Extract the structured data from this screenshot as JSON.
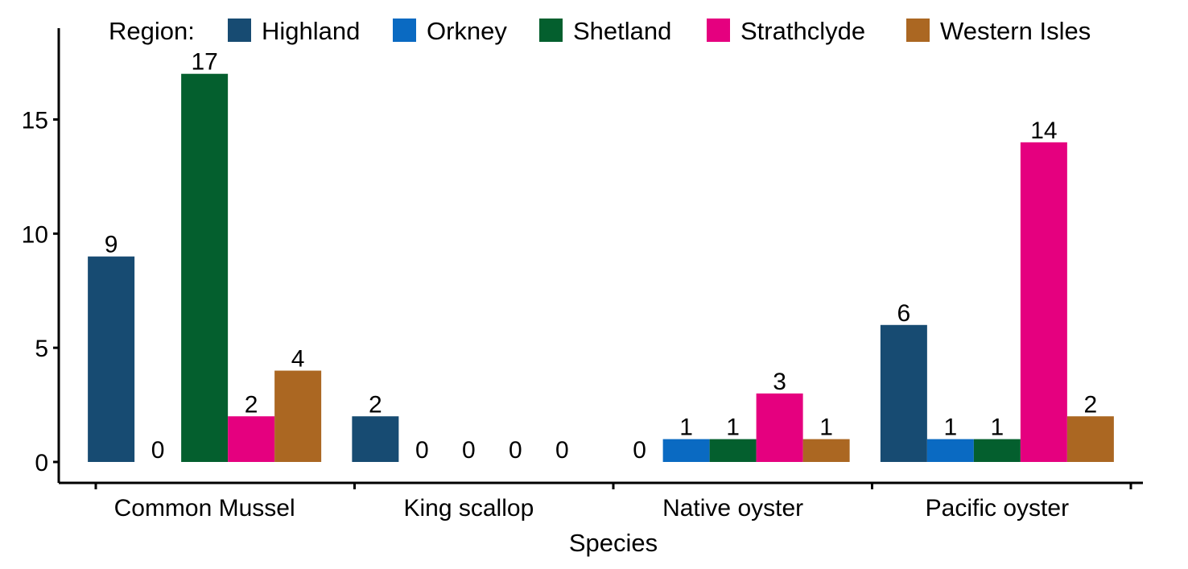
{
  "chart_data": {
    "type": "bar",
    "xlabel": "Species",
    "ylabel": "",
    "categories": [
      "Common Mussel",
      "King scallop",
      "Native oyster",
      "Pacific oyster"
    ],
    "series": [
      {
        "name": "Highland",
        "color": "#174B72",
        "values": [
          9,
          2,
          0,
          6
        ]
      },
      {
        "name": "Orkney",
        "color": "#0A6AC2",
        "values": [
          0,
          0,
          1,
          1
        ]
      },
      {
        "name": "Shetland",
        "color": "#045F2E",
        "values": [
          17,
          0,
          1,
          1
        ]
      },
      {
        "name": "Strathclyde",
        "color": "#E5007F",
        "values": [
          2,
          0,
          3,
          14
        ]
      },
      {
        "name": "Western Isles",
        "color": "#AB6722",
        "values": [
          4,
          0,
          1,
          2
        ]
      }
    ],
    "ylim": [
      -0.8,
      19
    ],
    "yticks": [
      0,
      5,
      10,
      15
    ],
    "legend": {
      "title": "Region:",
      "position": "top"
    },
    "grid": false,
    "data_labels": true
  }
}
